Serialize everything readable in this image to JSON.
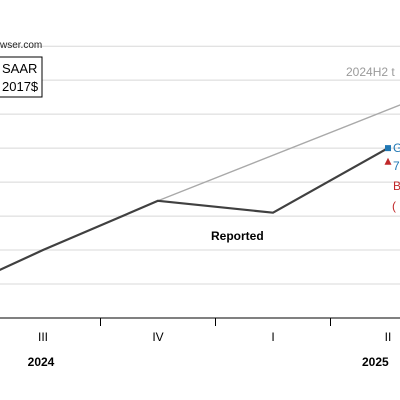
{
  "source_text": "wser.com",
  "legend": {
    "line1": "SAAR",
    "line2": "2017$"
  },
  "trend_label": "2024H2 t",
  "series_label": "Reported",
  "marker_labels": {
    "blue_prefix": "G",
    "blue_value": "7",
    "red_prefix": "B",
    "red_paren": "("
  },
  "colors": {
    "reported": "#404040",
    "trend": "#a9a9a9",
    "blue_marker": "#1f77b4",
    "red_marker": "#c0282a",
    "grid": "#d8d8d8"
  },
  "chart_data": {
    "type": "line",
    "categories": [
      "III",
      "IV",
      "I",
      "II"
    ],
    "years": [
      {
        "label": "2024"
      },
      {
        "label": "2025"
      }
    ],
    "series": [
      {
        "name": "Reported",
        "x": [
          -0.45,
          0,
          1,
          2,
          3
        ],
        "y": [
          1.3,
          2.0,
          3.45,
          3.1,
          5.0
        ]
      },
      {
        "name": "2024H2 t",
        "x": [
          1,
          3.8
        ],
        "y": [
          3.45,
          7.2
        ]
      }
    ],
    "markers": [
      {
        "x": 3,
        "y": 5.0,
        "color": "blue"
      },
      {
        "x": 3,
        "y": 4.6,
        "color": "red"
      }
    ],
    "xlim": [
      -0.45,
      3.8
    ],
    "ylim": [
      0,
      8.3
    ],
    "grid": true
  }
}
